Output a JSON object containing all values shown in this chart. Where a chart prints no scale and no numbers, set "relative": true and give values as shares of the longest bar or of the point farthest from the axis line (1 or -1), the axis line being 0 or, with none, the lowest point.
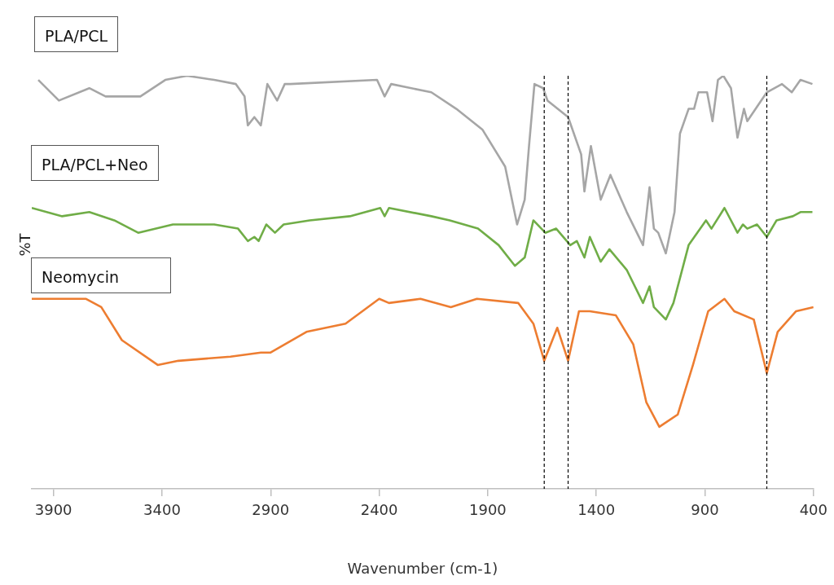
{
  "chart_data": {
    "type": "line",
    "xlabel": "Wavenumber (cm-1)",
    "ylabel": "%T",
    "relative": true,
    "legend": false,
    "grid": false,
    "marker": "none",
    "line_style": "solid",
    "xlim": [
      4000,
      400
    ],
    "xticks": [
      3900,
      3400,
      2900,
      2400,
      1900,
      1400,
      900,
      400
    ],
    "ref_lines": [
      {
        "axis": "x",
        "value": 1640,
        "color": "#000000",
        "line_style": "dashed"
      },
      {
        "axis": "x",
        "value": 1530,
        "color": "#000000",
        "line_style": "dashed"
      },
      {
        "axis": "x",
        "value": 615,
        "color": "#000000",
        "line_style": "dashed"
      }
    ],
    "series": [
      {
        "name": "PLA/PCL",
        "color": "#a6a6a6",
        "x": [
          3970,
          3875,
          3735,
          3660,
          3500,
          3385,
          3285,
          3160,
          3060,
          3020,
          3005,
          2975,
          2945,
          2915,
          2870,
          2835,
          2810,
          2410,
          2375,
          2345,
          2160,
          2045,
          1925,
          1820,
          1765,
          1730,
          1710,
          1685,
          1645,
          1625,
          1530,
          1470,
          1455,
          1425,
          1380,
          1335,
          1260,
          1185,
          1155,
          1135,
          1115,
          1080,
          1040,
          1015,
          975,
          950,
          930,
          890,
          865,
          840,
          815,
          780,
          750,
          720,
          705,
          615,
          545,
          500,
          460,
          405
        ],
        "values": [
          0.99,
          0.94,
          0.97,
          0.95,
          0.95,
          0.99,
          1.0,
          0.99,
          0.98,
          0.95,
          0.88,
          0.9,
          0.88,
          0.98,
          0.94,
          0.98,
          0.98,
          0.99,
          0.95,
          0.98,
          0.96,
          0.92,
          0.87,
          0.78,
          0.64,
          0.7,
          0.83,
          0.98,
          0.97,
          0.94,
          0.9,
          0.81,
          0.72,
          0.83,
          0.7,
          0.76,
          0.67,
          0.59,
          0.73,
          0.63,
          0.62,
          0.57,
          0.67,
          0.86,
          0.92,
          0.92,
          0.96,
          0.96,
          0.89,
          0.99,
          1.0,
          0.97,
          0.85,
          0.92,
          0.89,
          0.96,
          0.98,
          0.96,
          0.99,
          0.98
        ]
      },
      {
        "name": "PLA/PCL+Neo",
        "color": "#70ad47",
        "x": [
          4000,
          3860,
          3735,
          3620,
          3510,
          3350,
          3160,
          3050,
          3005,
          2975,
          2955,
          2920,
          2880,
          2840,
          2720,
          2535,
          2395,
          2375,
          2355,
          2160,
          2075,
          1945,
          1850,
          1775,
          1730,
          1690,
          1635,
          1585,
          1520,
          1490,
          1455,
          1430,
          1380,
          1340,
          1260,
          1185,
          1155,
          1135,
          1080,
          1045,
          975,
          895,
          870,
          810,
          750,
          725,
          705,
          660,
          615,
          570,
          495,
          460,
          405
        ],
        "values": [
          0.68,
          0.66,
          0.67,
          0.65,
          0.62,
          0.64,
          0.64,
          0.63,
          0.6,
          0.61,
          0.6,
          0.64,
          0.62,
          0.64,
          0.65,
          0.66,
          0.68,
          0.66,
          0.68,
          0.66,
          0.65,
          0.63,
          0.59,
          0.54,
          0.56,
          0.65,
          0.62,
          0.63,
          0.59,
          0.6,
          0.56,
          0.61,
          0.55,
          0.58,
          0.53,
          0.45,
          0.49,
          0.44,
          0.41,
          0.45,
          0.59,
          0.65,
          0.63,
          0.68,
          0.62,
          0.64,
          0.63,
          0.64,
          0.61,
          0.65,
          0.66,
          0.67,
          0.67
        ]
      },
      {
        "name": "Neomycin",
        "color": "#ed7d31",
        "x": [
          4000,
          3750,
          3680,
          3585,
          3420,
          3325,
          3085,
          2945,
          2900,
          2735,
          2555,
          2400,
          2355,
          2210,
          2070,
          1950,
          1760,
          1690,
          1640,
          1580,
          1530,
          1480,
          1430,
          1310,
          1230,
          1170,
          1110,
          1025,
          955,
          885,
          810,
          765,
          675,
          615,
          565,
          480,
          400
        ],
        "values": [
          0.46,
          0.46,
          0.44,
          0.36,
          0.3,
          0.31,
          0.32,
          0.33,
          0.33,
          0.38,
          0.4,
          0.46,
          0.45,
          0.46,
          0.44,
          0.46,
          0.45,
          0.4,
          0.31,
          0.39,
          0.31,
          0.43,
          0.43,
          0.42,
          0.35,
          0.21,
          0.15,
          0.18,
          0.3,
          0.43,
          0.46,
          0.43,
          0.41,
          0.28,
          0.38,
          0.43,
          0.44
        ]
      }
    ]
  }
}
